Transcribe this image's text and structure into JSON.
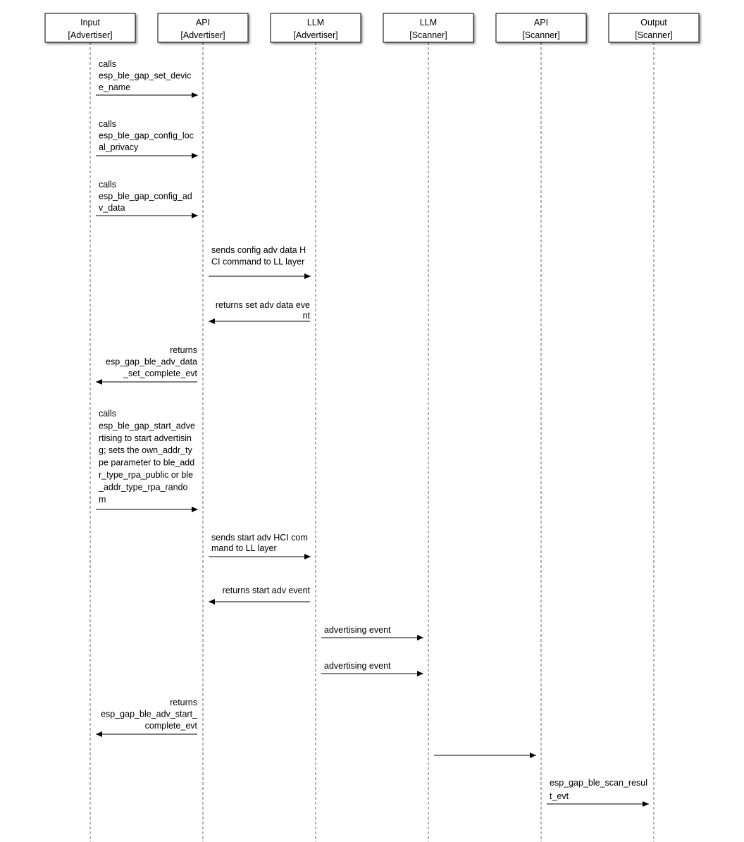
{
  "participants": [
    {
      "name": "Input",
      "role": "[Advertiser]"
    },
    {
      "name": "API",
      "role": "[Advertiser]"
    },
    {
      "name": "LLM",
      "role": "[Advertiser]"
    },
    {
      "name": "LLM",
      "role": "[Scanner]"
    },
    {
      "name": "API",
      "role": "[Scanner]"
    },
    {
      "name": "Output",
      "role": "[Scanner]"
    }
  ],
  "messages": [
    {
      "from": 0,
      "to": 1,
      "lines": [
        "calls",
        "esp_ble_gap_set_devic",
        "e_name"
      ]
    },
    {
      "from": 0,
      "to": 1,
      "lines": [
        "calls",
        "esp_ble_gap_config_loc",
        "al_privacy"
      ]
    },
    {
      "from": 0,
      "to": 1,
      "lines": [
        "calls",
        "esp_ble_gap_config_ad",
        "v_data"
      ]
    },
    {
      "from": 1,
      "to": 2,
      "lines": [
        "sends config adv data H",
        "CI command to LL layer"
      ]
    },
    {
      "from": 2,
      "to": 1,
      "lines": [
        "returns set adv data eve",
        "nt"
      ]
    },
    {
      "from": 1,
      "to": 0,
      "lines": [
        "returns",
        "esp_gap_ble_adv_data",
        "_set_complete_evt"
      ]
    },
    {
      "from": 0,
      "to": 1,
      "lines": [
        "calls",
        "esp_ble_gap_start_adve",
        "rtising to start advertisin",
        "g; sets the own_addr_ty",
        "pe parameter to ble_add",
        "r_type_rpa_public or ble",
        "_addr_type_rpa_rando",
        "m"
      ]
    },
    {
      "from": 1,
      "to": 2,
      "lines": [
        "sends start adv HCI com",
        "mand to LL layer"
      ]
    },
    {
      "from": 2,
      "to": 1,
      "lines": [
        "returns start adv event"
      ]
    },
    {
      "from": 2,
      "to": 3,
      "lines": [
        "advertising event"
      ]
    },
    {
      "from": 2,
      "to": 3,
      "lines": [
        "advertising event"
      ]
    },
    {
      "from": 1,
      "to": 0,
      "lines": [
        "returns",
        "esp_gap_ble_adv_start_",
        "complete_evt"
      ]
    },
    {
      "from": 3,
      "to": 4,
      "lines": []
    },
    {
      "from": 4,
      "to": 5,
      "lines": [
        "esp_gap_ble_scan_resul",
        "t_evt"
      ]
    }
  ]
}
